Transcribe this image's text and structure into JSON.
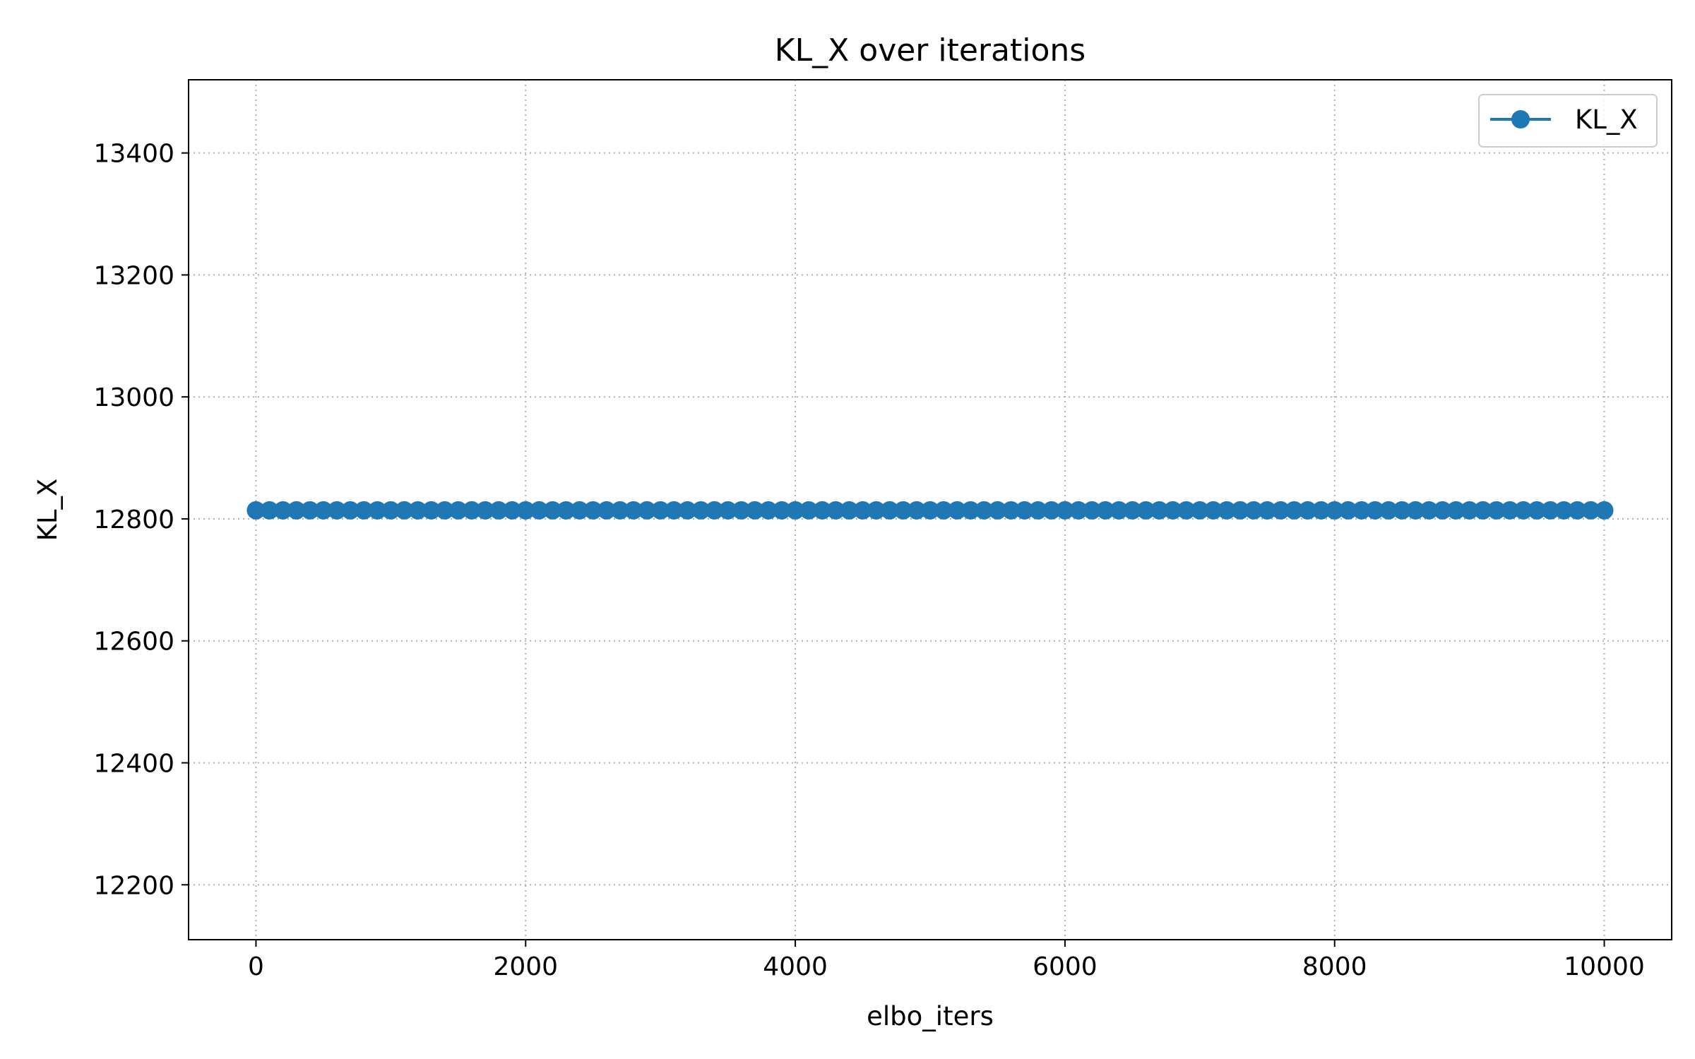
{
  "chart_data": {
    "type": "line",
    "title": "KL_X over iterations",
    "xlabel": "elbo_iters",
    "ylabel": "KL_X",
    "xlim": [
      -500,
      10500
    ],
    "ylim": [
      12110,
      13520
    ],
    "xticks": [
      0,
      2000,
      4000,
      6000,
      8000,
      10000
    ],
    "yticks": [
      12200,
      12400,
      12600,
      12800,
      13000,
      13200,
      13400
    ],
    "grid": true,
    "grid_style": "dotted",
    "legend_position": "top-right",
    "series": [
      {
        "name": "KL_X",
        "color": "#1f77b4",
        "marker": "circle",
        "x_start": 0,
        "x_end": 10000,
        "x_step": 100,
        "value": 12814
      }
    ]
  }
}
